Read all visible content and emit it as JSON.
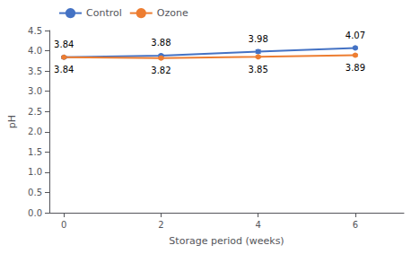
{
  "chart_data": {
    "type": "line",
    "x": [
      0,
      2,
      4,
      6
    ],
    "xlabel": "Storage period (weeks)",
    "ylabel": "pH",
    "series": [
      {
        "name": "Control",
        "color": "#4472C4",
        "marker": "circle",
        "values": [
          3.84,
          3.88,
          3.98,
          4.07
        ],
        "errors": [
          0.025,
          0.025,
          0.04,
          0.025
        ]
      },
      {
        "name": "Ozone",
        "color": "#ED7D31",
        "marker": "circle",
        "values": [
          3.84,
          3.82,
          3.85,
          3.89
        ],
        "errors": [
          0.025,
          0.025,
          0.025,
          0.025
        ]
      }
    ],
    "xlim": [
      -0.3,
      7.0
    ],
    "xticks": [
      0,
      2,
      4,
      6
    ],
    "ylim": [
      0.0,
      4.5
    ],
    "yticks": [
      {
        "value": 0,
        "label": "0.0"
      },
      0.5,
      {
        "value": 1,
        "label": "1.0"
      },
      1.5,
      {
        "value": 2,
        "label": "2.0"
      },
      2.5,
      {
        "value": 3,
        "label": "3.0"
      },
      3.5,
      {
        "value": 4,
        "label": "4.0"
      },
      4.5
    ],
    "data_labels": true,
    "grid": false,
    "legend": "upper left"
  }
}
